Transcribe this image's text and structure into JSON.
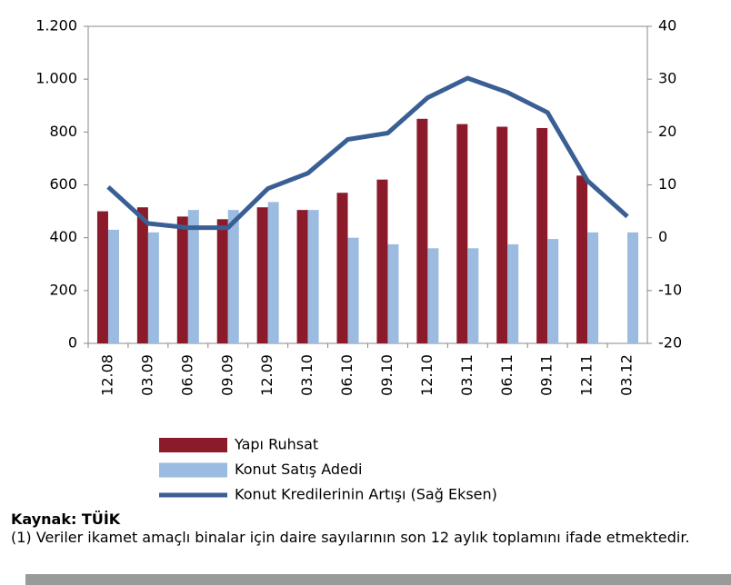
{
  "chart_data": {
    "type": "bar_line",
    "categories": [
      "12.08",
      "03.09",
      "06.09",
      "09.09",
      "12.09",
      "03.10",
      "06.10",
      "09.10",
      "12.10",
      "03.11",
      "06.11",
      "09.11",
      "12.11",
      "03.12"
    ],
    "series": [
      {
        "name": "Yapı Ruhsat",
        "color": "#8b1a2b",
        "type": "bar",
        "values": [
          500,
          515,
          480,
          470,
          515,
          505,
          570,
          620,
          850,
          830,
          820,
          815,
          635,
          null
        ]
      },
      {
        "name": "Konut Satış Adedi",
        "color": "#9bbbe0",
        "type": "bar",
        "values": [
          430,
          420,
          505,
          505,
          535,
          505,
          400,
          375,
          360,
          360,
          375,
          395,
          420,
          420
        ]
      },
      {
        "name": "Konut Kredilerinin Artışı (Sağ Eksen)",
        "color": "#3a5f94",
        "type": "line",
        "axis": "y2",
        "values": [
          9.6,
          2.7,
          1.9,
          1.9,
          9.3,
          12.2,
          18.6,
          19.8,
          26.5,
          30.2,
          27.5,
          23.7,
          10.8,
          4.0
        ]
      }
    ],
    "ylim": [
      0,
      1200
    ],
    "yticks": [
      0,
      200,
      400,
      600,
      800,
      {
        "value": 1000,
        "label": "1.000"
      },
      {
        "value": 1200,
        "label": "1.200"
      }
    ],
    "y2lim": [
      -20,
      40
    ],
    "y2ticks": [
      -20,
      -10,
      0,
      10,
      20,
      30,
      40
    ],
    "source": "Kaynak: TÜİK",
    "note": "(1) Veriler ikamet amaçlı binalar için daire sayılarının son 12 aylık toplamını ifade etmektedir."
  }
}
